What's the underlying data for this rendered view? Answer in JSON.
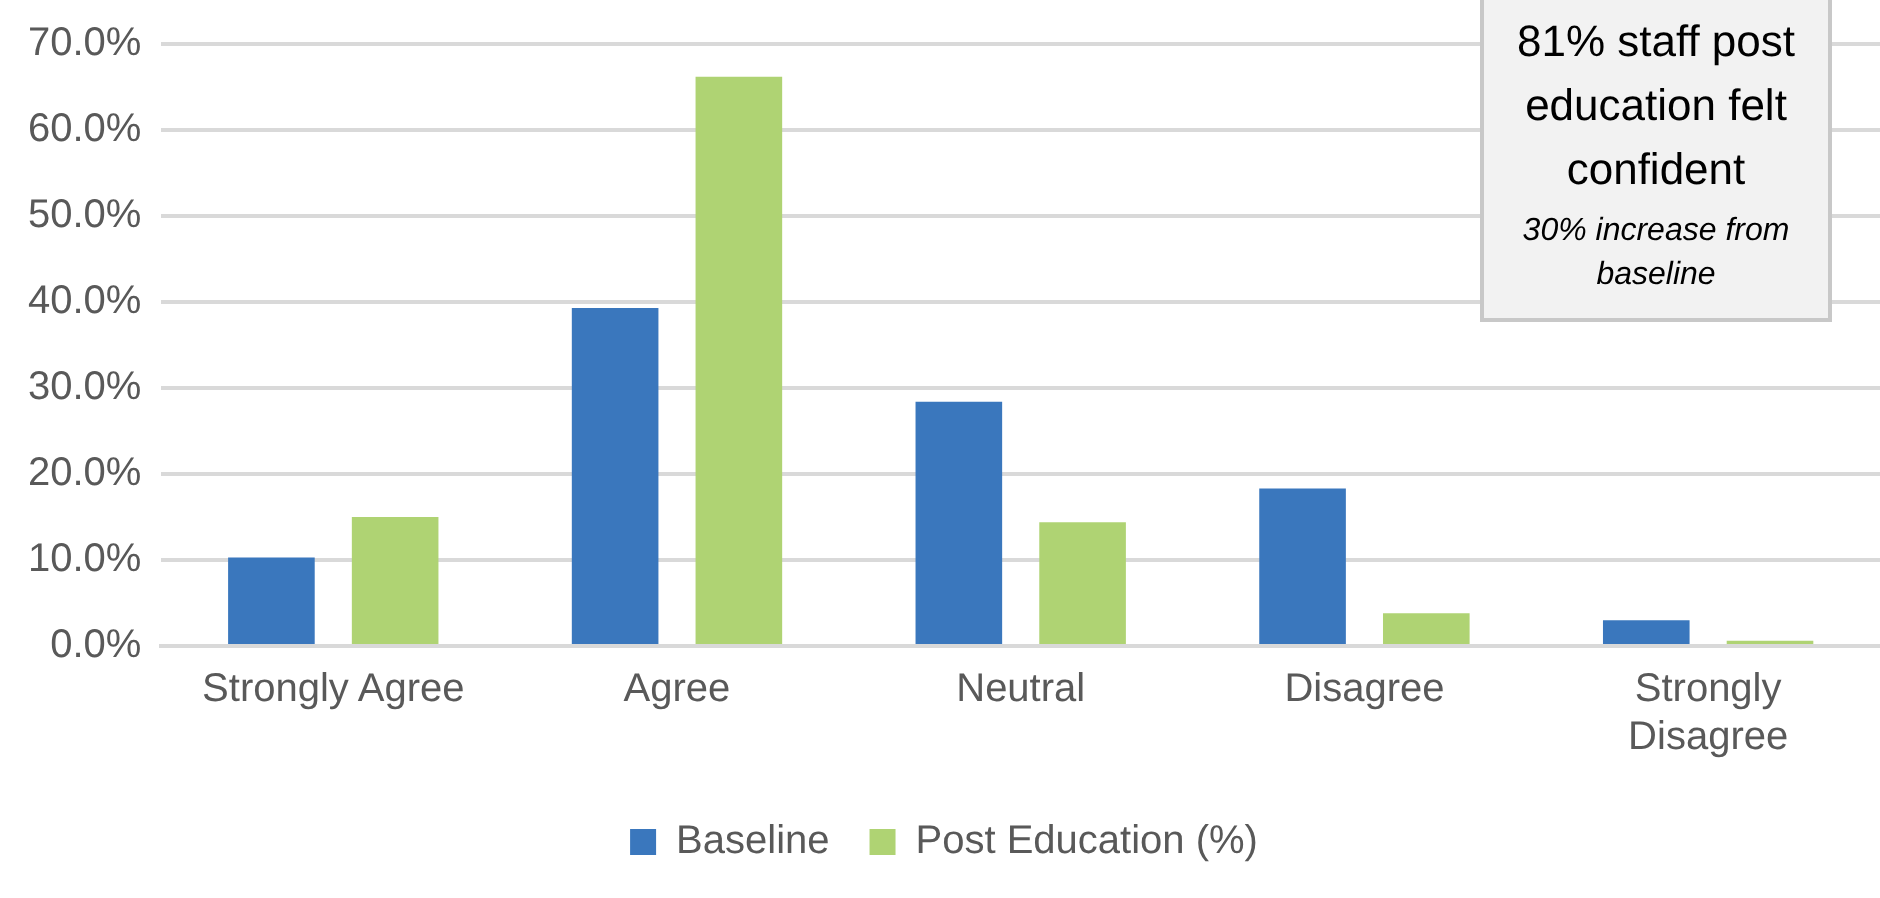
{
  "chart_data": {
    "type": "bar",
    "categories": [
      "Strongly Agree",
      "Agree",
      "Neutral",
      "Disagree",
      "Strongly Disagree"
    ],
    "series": [
      {
        "name": "Baseline",
        "color": "#3a77bd",
        "values": [
          10.3,
          39.3,
          28.4,
          18.3,
          3.0
        ]
      },
      {
        "name": "Post Education (%)",
        "color": "#afd373",
        "values": [
          15.0,
          66.2,
          14.4,
          3.8,
          0.6
        ]
      }
    ],
    "ylim": [
      0,
      70
    ],
    "yticks": [
      {
        "value": 0,
        "label": "0.0%"
      },
      {
        "value": 10,
        "label": "10.0%"
      },
      {
        "value": 20,
        "label": "20.0%"
      },
      {
        "value": 30,
        "label": "30.0%"
      },
      {
        "value": 40,
        "label": "40.0%"
      },
      {
        "value": 50,
        "label": "50.0%"
      },
      {
        "value": 60,
        "label": "60.0%"
      },
      {
        "value": 70,
        "label": "70.0%"
      }
    ],
    "grid": "y",
    "legend": "bottom",
    "annotations": [
      "81% staff post education felt confident",
      "30%  increase from baseline"
    ]
  }
}
